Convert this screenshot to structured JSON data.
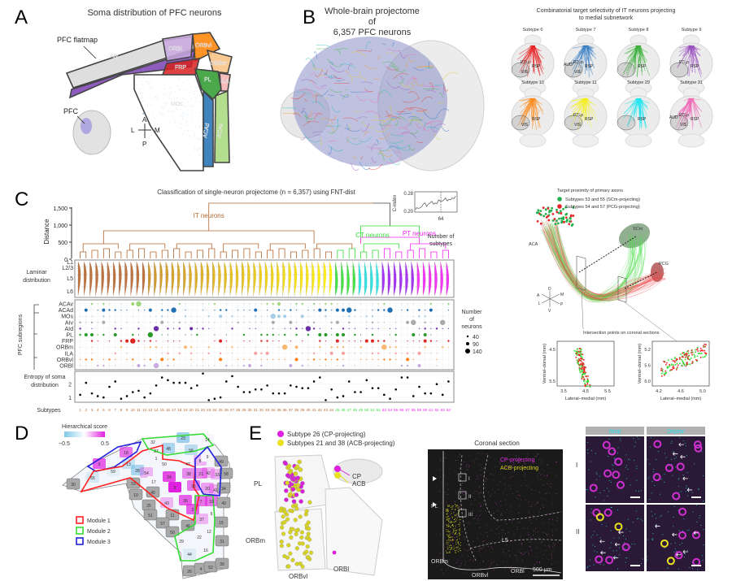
{
  "panels": {
    "A": {
      "label": "A",
      "title": "Soma distribution of PFC neurons",
      "flatmap_label": "PFC flatmap",
      "pfc_label": "PFC",
      "regions": [
        "AIv",
        "AId",
        "ORBl",
        "ORBvl",
        "FRP",
        "ORBm",
        "PL",
        "ILA",
        "MOs",
        "ACAd",
        "ACAv"
      ],
      "compass": {
        "a": "A",
        "p": "P",
        "l": "L",
        "m": "M"
      }
    },
    "B": {
      "label": "B",
      "title_line1": "Whole-brain projectome of",
      "title_line2": "6,357 PFC neurons"
    },
    "topright": {
      "title_line1": "Combinatorial target selectivity of IT neurons projecting",
      "title_line2": "to medial subnetwork",
      "subtypes": [
        {
          "name": "Subtype 6",
          "color": "#e8262a",
          "regions": [
            "PTLp",
            "RSP",
            "VIS"
          ]
        },
        {
          "name": "Subtype 7",
          "color": "#3a7fc4",
          "regions": [
            "AUD",
            "PTLp",
            "RSP",
            "VIS"
          ]
        },
        {
          "name": "Subtype 8",
          "color": "#3db03d",
          "regions": [
            "RSP"
          ]
        },
        {
          "name": "Subtype 9",
          "color": "#9a4fc0",
          "regions": [
            "PTLp",
            "RSP"
          ]
        },
        {
          "name": "Subtype 10",
          "color": "#ff8a1a",
          "regions": [
            "VIS",
            "RSP"
          ]
        },
        {
          "name": "Subtype 11",
          "color": "#f5f01e",
          "regions": [
            "PTLp",
            "VIS",
            "RSP"
          ]
        },
        {
          "name": "Subtype 29",
          "color": "#22e6f0",
          "regions": [
            "RSP"
          ]
        },
        {
          "name": "Subtype 31",
          "color": "#f06ab8",
          "regions": [
            "AUD",
            "PTLp",
            "VIS",
            "RSP"
          ]
        }
      ]
    },
    "C": {
      "label": "C",
      "title": "Classification of single-neuron projectome (n = 6,357) using FNT-dist",
      "distance_label": "Distance",
      "distance_ticks": [
        "1,500",
        "1,000",
        "500",
        "0"
      ],
      "clusters": [
        {
          "name": "IT neurons",
          "color": "#b5652e"
        },
        {
          "name": "CT neurons",
          "color": "#33dd33"
        },
        {
          "name": "PT neurons",
          "color": "#ee22ee"
        }
      ],
      "inset": {
        "ylabel": "C-index",
        "yticks": [
          "0.28",
          "0.20"
        ],
        "xtick": "64",
        "xlabel_line1": "Number of",
        "xlabel_line2": "subtypes"
      },
      "laminar_label_line1": "Laminar",
      "laminar_label_line2": "distribution",
      "layers": [
        "L1",
        "L2/3",
        "L5",
        "L6"
      ],
      "subregions_label": "PFC subregions",
      "subregions": [
        {
          "name": "ACAv",
          "color": "#9fd67a"
        },
        {
          "name": "ACAd",
          "color": "#1f6fb4"
        },
        {
          "name": "MOs",
          "color": "#a8cde8"
        },
        {
          "name": "AIv",
          "color": "#aaaaaa"
        },
        {
          "name": "AId",
          "color": "#6a2fa6"
        },
        {
          "name": "PL",
          "color": "#2a9a2a"
        },
        {
          "name": "FRP",
          "color": "#e02525"
        },
        {
          "name": "ORBm",
          "color": "#f8b870"
        },
        {
          "name": "ILA",
          "color": "#f4a0a0"
        },
        {
          "name": "ORBvl",
          "color": "#ff7f0e"
        },
        {
          "name": "ORBl",
          "color": "#c8a8e0"
        }
      ],
      "size_legend": {
        "title_line1": "Number",
        "title_line2": "of",
        "title_line3": "neurons",
        "values": [
          "40",
          "90",
          "140"
        ]
      },
      "entropy_label_line1": "Entropy of soma",
      "entropy_label_line2": "distribution",
      "entropy_ticks": [
        "2",
        "1"
      ],
      "subtypes_label": "Subtypes"
    },
    "midright": {
      "title": "Target proximity of primary axons",
      "legend": [
        {
          "name": "Subtypes 53 and 55 (SCm-projecting)",
          "color": "#22b04a"
        },
        {
          "name": "Subtypes 54 and 57 (PCG-projecting)",
          "color": "#e8262a"
        }
      ],
      "labels": {
        "aca": "ACA",
        "scm": "SCm",
        "pcg": "PCG"
      },
      "axes3d": {
        "d": "D",
        "v": "V",
        "a": "A",
        "p": "P",
        "l": "L",
        "m": "M"
      },
      "sections_title": "Intersection points on coronal sections",
      "plot1": {
        "xlabel": "Lateral–medial (mm)",
        "ylabel": "Ventral–dorsal (mm)",
        "xticks": [
          "3.5",
          "4.5",
          "5.5"
        ],
        "yticks": [
          "4.5",
          "5.5"
        ]
      },
      "plot2": {
        "xlabel": "Lateral–medial (mm)",
        "ylabel": "Ventral–dorsal (mm)",
        "xticks": [
          "4.2",
          "4.6",
          "5.0"
        ],
        "yticks": [
          "5.2",
          "5.6",
          "6.0"
        ]
      }
    },
    "D": {
      "label": "D",
      "colorbar_title": "Hierarchical score",
      "colorbar_min": "−0.5",
      "colorbar_max": "0.5",
      "modules": [
        {
          "name": "Module 1",
          "color": "#ff2020"
        },
        {
          "name": "Module 2",
          "color": "#33dd33"
        },
        {
          "name": "Module 3",
          "color": "#2020dd"
        }
      ],
      "cells": [
        "23",
        "14",
        "32",
        "27",
        "48",
        "56",
        "18",
        "1",
        "50",
        "47",
        "8",
        "9",
        "49",
        "3",
        "59",
        "13",
        "28",
        "54",
        "21",
        "42",
        "33",
        "58",
        "55",
        "24",
        "38",
        "30",
        "17",
        "53",
        "5",
        "35",
        "20",
        "41",
        "34",
        "10",
        "45",
        "7",
        "19",
        "40",
        "25",
        "43",
        "36",
        "2",
        "51",
        "11",
        "6",
        "37",
        "57",
        "46",
        "15",
        "50",
        "12",
        "22",
        "31",
        "29",
        "16",
        "44",
        "26",
        "4",
        "52",
        "39"
      ]
    },
    "E": {
      "label": "E",
      "legend": [
        {
          "name": "Subtype 26 (CP-projecting)",
          "color": "#e020e0"
        },
        {
          "name": "Subtypes 21 and 38 (ACB-projecting)",
          "color": "#e8e020"
        }
      ],
      "regions": {
        "pl": "PL",
        "orbm": "ORBm",
        "orbvl": "ORBvl",
        "orbl": "ORBl",
        "cp": "CP",
        "acb": "ACB"
      },
      "coronal": {
        "title": "Coronal section",
        "cp_label": "CP-projecting",
        "acb_label": "ACB-projecting",
        "pl": "PL",
        "orbm": "ORBm",
        "orbvl": "ORBvl",
        "orbl": "ORBl",
        "l5": "L5",
        "boxes": [
          "I",
          "II",
          "III"
        ],
        "scale": "500 µm"
      },
      "micro": {
        "headers": [
          "Nnat",
          "Deptor"
        ],
        "rows": [
          "I",
          "II"
        ]
      }
    }
  },
  "chart_data": {
    "type": "scatter",
    "title": "",
    "xlabel": "Subtypes",
    "ylabel": "Entropy of soma distribution",
    "x": [
      1,
      2,
      3,
      4,
      5,
      6,
      7,
      8,
      9,
      10,
      11,
      12,
      13,
      14,
      15,
      16,
      17,
      18,
      19,
      20,
      21,
      22,
      23,
      24,
      25,
      26,
      27,
      28,
      29,
      30,
      31,
      32,
      33,
      34,
      35,
      36,
      37,
      38,
      39,
      40,
      41,
      42,
      43,
      44,
      45,
      46,
      47,
      48,
      49,
      50,
      51,
      52,
      53,
      54,
      55,
      56,
      57,
      58,
      59,
      60,
      61,
      62,
      63,
      64
    ],
    "values": [
      1.2,
      2.1,
      1.3,
      1.1,
      1.0,
      1.8,
      2.2,
      0.9,
      1.1,
      1.4,
      1.5,
      1.0,
      1.3,
      1.9,
      2.5,
      2.3,
      2.1,
      2.1,
      2.1,
      1.7,
      1.9,
      2.8,
      0.8,
      0.9,
      1.0,
      2.2,
      2.6,
      1.8,
      1.4,
      1.4,
      1.6,
      1.6,
      1.9,
      1.3,
      1.3,
      1.3,
      1.9,
      1.8,
      1.7,
      1.7,
      2.2,
      2.5,
      0.8,
      1.6,
      1.0,
      1.1,
      2.2,
      1.4,
      1.4,
      2.3,
      1.7,
      1.7,
      1.2,
      0.9,
      1.6,
      2.5,
      2.5,
      1.1,
      1.8,
      1.3,
      1.3,
      2.0,
      1.2,
      2.2
    ],
    "ylim": [
      0.7,
      2.9
    ],
    "groups": [
      {
        "name": "IT neurons",
        "range": [
          1,
          44
        ],
        "color": "#b5652e"
      },
      {
        "name": "CT neurons",
        "range": [
          45,
          52
        ],
        "color": "#33dd33"
      },
      {
        "name": "PT neurons",
        "range": [
          53,
          64
        ],
        "color": "#ee22ee"
      }
    ],
    "inset_cindex": {
      "ylim": [
        0.2,
        0.28
      ],
      "marked_x": 64
    }
  }
}
